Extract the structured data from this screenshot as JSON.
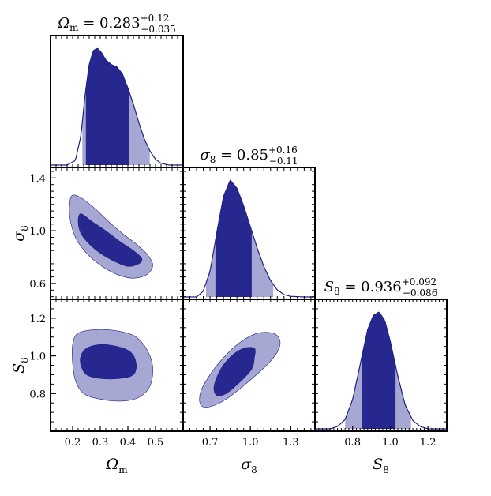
{
  "chart_data": {
    "type": "corner",
    "colors": {
      "dark": "#26288f",
      "light": "#a6a8d3",
      "line": "#1f2087",
      "frame": "#000000"
    },
    "parameters": [
      {
        "key": "omega_m",
        "axis_label": "Ωm",
        "axis_symbol": "Ω",
        "axis_sub": "m",
        "range": [
          0.12,
          0.6
        ],
        "ticks": [
          0.2,
          0.3,
          0.4,
          0.5
        ],
        "tick_labels": [
          "0.2",
          "0.3",
          "0.4",
          "0.5"
        ],
        "title": {
          "lhs": "Ω",
          "lhs_sub": "m",
          "value": "0.283",
          "plus": "+0.12",
          "minus": "−0.035"
        },
        "median": 0.283,
        "inner": [
          0.248,
          0.403
        ],
        "outer": [
          0.235,
          0.479
        ],
        "marginal": {
          "x": [
            0.12,
            0.18,
            0.21,
            0.23,
            0.245,
            0.26,
            0.275,
            0.29,
            0.305,
            0.32,
            0.34,
            0.36,
            0.38,
            0.4,
            0.42,
            0.44,
            0.46,
            0.48,
            0.5,
            0.52,
            0.55,
            0.6
          ],
          "y": [
            0.0,
            0.0,
            0.04,
            0.25,
            0.6,
            0.86,
            0.98,
            1.0,
            0.96,
            0.9,
            0.86,
            0.84,
            0.78,
            0.66,
            0.52,
            0.36,
            0.22,
            0.12,
            0.05,
            0.015,
            0.0,
            0.0
          ]
        }
      },
      {
        "key": "sigma_8",
        "axis_label": "σ8",
        "axis_symbol": "σ",
        "axis_sub": "8",
        "range": [
          0.48,
          1.48
        ],
        "ticks": [
          0.6,
          1.0,
          1.4
        ],
        "tick_labels": [
          "0.6",
          "1.0",
          "1.4"
        ],
        "h_ticks": [
          0.7,
          1.0,
          1.3
        ],
        "h_tick_labels": [
          "0.7",
          "1.0",
          "1.3"
        ],
        "h_range": [
          0.5,
          1.48
        ],
        "title": {
          "lhs": "σ",
          "lhs_sub": "8",
          "value": "0.85",
          "plus": "+0.16",
          "minus": "−0.11"
        },
        "median": 0.85,
        "inner": [
          0.74,
          1.01
        ],
        "outer": [
          0.67,
          1.17
        ],
        "marginal": {
          "x": [
            0.5,
            0.6,
            0.65,
            0.7,
            0.75,
            0.8,
            0.85,
            0.9,
            0.95,
            1.0,
            1.05,
            1.1,
            1.15,
            1.2,
            1.25,
            1.3,
            1.4,
            1.48
          ],
          "y": [
            0.0,
            0.0,
            0.05,
            0.22,
            0.55,
            0.86,
            1.0,
            0.93,
            0.78,
            0.6,
            0.42,
            0.26,
            0.14,
            0.06,
            0.02,
            0.005,
            0.0,
            0.0
          ]
        }
      },
      {
        "key": "s_8",
        "axis_label": "S8",
        "axis_symbol": "S",
        "axis_sub": "8",
        "range": [
          0.6,
          1.3
        ],
        "ticks": [
          0.8,
          1.0,
          1.2
        ],
        "tick_labels": [
          "0.8",
          "1.0",
          "1.2"
        ],
        "title": {
          "lhs": "S",
          "lhs_sub": "8",
          "value": "0.936",
          "plus": "+0.092",
          "minus": "−0.086"
        },
        "median": 0.936,
        "inner": [
          0.85,
          1.028
        ],
        "outer": [
          0.76,
          1.11
        ],
        "marginal": {
          "x": [
            0.6,
            0.68,
            0.72,
            0.76,
            0.8,
            0.84,
            0.88,
            0.91,
            0.94,
            0.97,
            1.0,
            1.04,
            1.08,
            1.12,
            1.16,
            1.2,
            1.3
          ],
          "y": [
            0.0,
            0.0,
            0.02,
            0.08,
            0.25,
            0.55,
            0.85,
            0.97,
            1.0,
            0.93,
            0.75,
            0.45,
            0.2,
            0.07,
            0.02,
            0.0,
            0.0
          ]
        }
      }
    ],
    "contours": [
      {
        "panel": "sigma8_vs_omegam",
        "x_param": "omega_m",
        "y_param": "sigma_8",
        "outer": [
          [
            0.2,
            1.27
          ],
          [
            0.23,
            1.25
          ],
          [
            0.28,
            1.17
          ],
          [
            0.33,
            1.07
          ],
          [
            0.38,
            0.98
          ],
          [
            0.43,
            0.9
          ],
          [
            0.47,
            0.82
          ],
          [
            0.49,
            0.74
          ],
          [
            0.47,
            0.67
          ],
          [
            0.42,
            0.64
          ],
          [
            0.36,
            0.67
          ],
          [
            0.3,
            0.74
          ],
          [
            0.25,
            0.83
          ],
          [
            0.21,
            0.95
          ],
          [
            0.19,
            1.1
          ],
          [
            0.19,
            1.22
          ]
        ],
        "inner": [
          [
            0.23,
            1.13
          ],
          [
            0.27,
            1.07
          ],
          [
            0.32,
            1.0
          ],
          [
            0.37,
            0.92
          ],
          [
            0.42,
            0.85
          ],
          [
            0.45,
            0.79
          ],
          [
            0.44,
            0.75
          ],
          [
            0.4,
            0.73
          ],
          [
            0.35,
            0.77
          ],
          [
            0.3,
            0.83
          ],
          [
            0.26,
            0.9
          ],
          [
            0.23,
            0.98
          ],
          [
            0.22,
            1.07
          ]
        ]
      },
      {
        "panel": "s8_vs_omegam",
        "x_param": "omega_m",
        "y_param": "s_8",
        "outer": [
          [
            0.22,
            1.12
          ],
          [
            0.29,
            1.14
          ],
          [
            0.37,
            1.13
          ],
          [
            0.43,
            1.1
          ],
          [
            0.47,
            1.03
          ],
          [
            0.49,
            0.94
          ],
          [
            0.48,
            0.84
          ],
          [
            0.44,
            0.78
          ],
          [
            0.38,
            0.76
          ],
          [
            0.3,
            0.77
          ],
          [
            0.24,
            0.8
          ],
          [
            0.21,
            0.87
          ],
          [
            0.2,
            0.96
          ],
          [
            0.2,
            1.06
          ]
        ],
        "inner": [
          [
            0.25,
            1.04
          ],
          [
            0.3,
            1.06
          ],
          [
            0.36,
            1.05
          ],
          [
            0.41,
            1.02
          ],
          [
            0.43,
            0.96
          ],
          [
            0.42,
            0.9
          ],
          [
            0.37,
            0.88
          ],
          [
            0.3,
            0.88
          ],
          [
            0.25,
            0.9
          ],
          [
            0.23,
            0.95
          ],
          [
            0.23,
            1.0
          ]
        ]
      },
      {
        "panel": "s8_vs_sigma8",
        "x_param": "sigma_8",
        "y_param": "s_8",
        "outer": [
          [
            0.63,
            0.81
          ],
          [
            0.63,
            0.74
          ],
          [
            0.7,
            0.73
          ],
          [
            0.82,
            0.77
          ],
          [
            0.98,
            0.86
          ],
          [
            1.12,
            0.95
          ],
          [
            1.2,
            1.02
          ],
          [
            1.22,
            1.08
          ],
          [
            1.17,
            1.12
          ],
          [
            1.05,
            1.12
          ],
          [
            0.92,
            1.07
          ],
          [
            0.8,
            0.99
          ],
          [
            0.7,
            0.9
          ]
        ],
        "inner": [
          [
            0.73,
            0.84
          ],
          [
            0.75,
            0.79
          ],
          [
            0.82,
            0.8
          ],
          [
            0.92,
            0.86
          ],
          [
            1.01,
            0.93
          ],
          [
            1.03,
            0.99
          ],
          [
            1.03,
            1.04
          ],
          [
            0.95,
            1.04
          ],
          [
            0.86,
            1.0
          ],
          [
            0.78,
            0.93
          ]
        ]
      }
    ]
  }
}
